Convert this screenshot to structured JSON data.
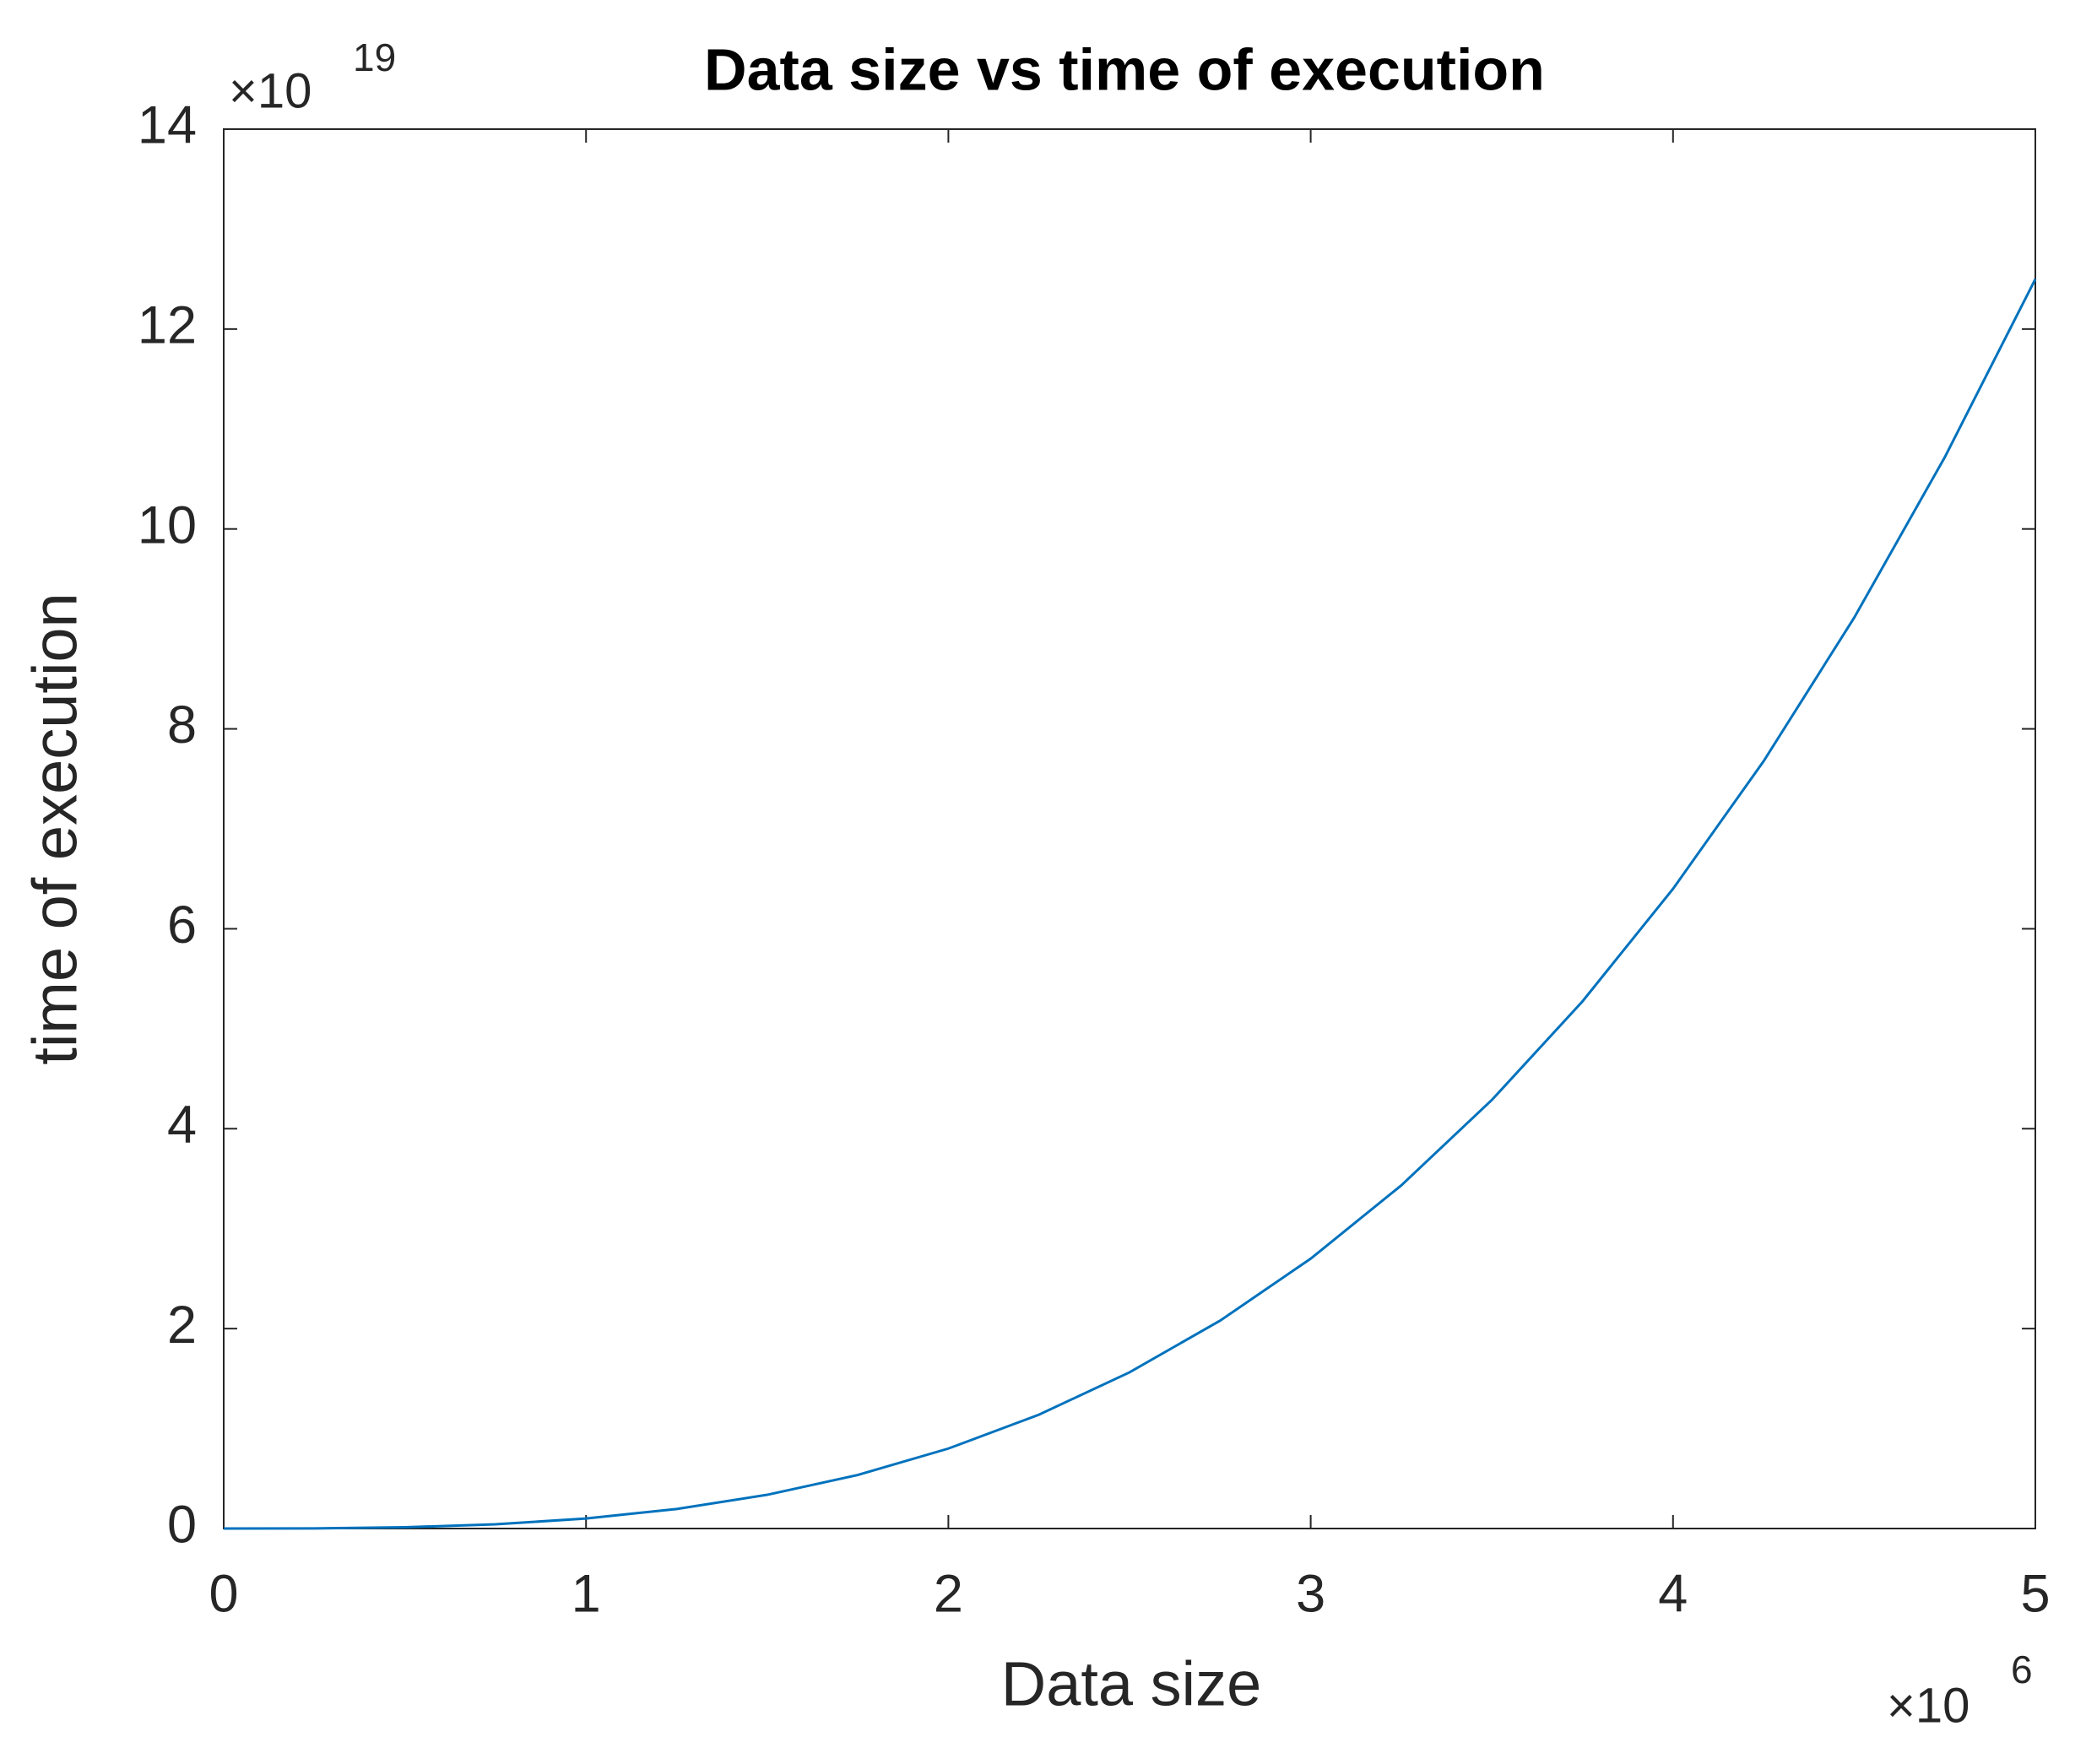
{
  "chart_data": {
    "type": "line",
    "title": "Data size vs time of execution",
    "x_label": "Data size",
    "y_label": "time of execution",
    "x_multiplier": {
      "base": "×10",
      "exponent": "6"
    },
    "y_multiplier": {
      "base": "×10",
      "exponent": "19"
    },
    "x": [
      0,
      250000,
      500000,
      750000,
      1000000,
      1250000,
      1500000,
      1750000,
      2000000,
      2250000,
      2500000,
      2750000,
      3000000,
      3250000,
      3500000,
      3750000,
      4000000,
      4250000,
      4500000,
      4750000,
      5000000
    ],
    "series": [
      {
        "color": "#0072bd",
        "values": [
          0,
          1.5625e+16,
          1.25e+17,
          4.21875e+17,
          1e+18,
          1.953125e+18,
          3.375e+18,
          5.359375e+18,
          8e+18,
          1.1390625e+19,
          1.5625e+19,
          2.0796875e+19,
          2.7e+19,
          3.4328125e+19,
          4.2875e+19,
          5.2734375e+19,
          6.4e+19,
          7.6765625e+19,
          9.1125e+19,
          1.07171875e+20,
          1.25e+20
        ]
      }
    ],
    "xlim": [
      0,
      5000000
    ],
    "ylim": [
      0,
      1.4e+20
    ],
    "xticks": [
      0,
      {
        "value": 1000000,
        "label": "1"
      },
      {
        "value": 2000000,
        "label": "2"
      },
      {
        "value": 3000000,
        "label": "3"
      },
      {
        "value": 4000000,
        "label": "4"
      },
      {
        "value": 5000000,
        "label": "5"
      }
    ],
    "yticks": [
      0,
      {
        "value": 2e+19,
        "label": "2"
      },
      {
        "value": 4e+19,
        "label": "4"
      },
      {
        "value": 6e+19,
        "label": "6"
      },
      {
        "value": 8e+19,
        "label": "8"
      },
      {
        "value": 1e+20,
        "label": "10"
      },
      {
        "value": 1.2e+20,
        "label": "12"
      },
      {
        "value": 1.4e+20,
        "label": "14"
      }
    ],
    "grid": false
  }
}
